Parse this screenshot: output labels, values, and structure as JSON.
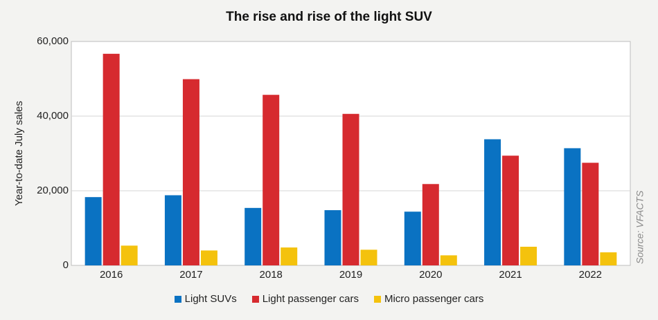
{
  "chart_data": {
    "type": "bar",
    "title": "The rise and rise of the light SUV",
    "ylabel": "Year-to-date July sales",
    "xlabel": "",
    "source_note": "Source: VFACTS",
    "categories": [
      "2016",
      "2017",
      "2018",
      "2019",
      "2020",
      "2021",
      "2022"
    ],
    "ylim": [
      0,
      60000
    ],
    "yticks": [
      0,
      20000,
      40000,
      60000
    ],
    "ytick_labels": [
      "0",
      "20,000",
      "40,000",
      "60,000"
    ],
    "grid": true,
    "legend_position": "bottom-center",
    "series": [
      {
        "name": "Light SUVs",
        "color": "#0a72c2",
        "values": [
          18300,
          18800,
          15400,
          14800,
          14400,
          33800,
          31400
        ]
      },
      {
        "name": "Light passenger cars",
        "color": "#d62a2f",
        "values": [
          56700,
          49900,
          45700,
          40600,
          21800,
          29400,
          27500
        ]
      },
      {
        "name": "Micro passenger cars",
        "color": "#f4c20d",
        "values": [
          5300,
          4000,
          4800,
          4200,
          2700,
          5000,
          3500
        ]
      }
    ]
  }
}
